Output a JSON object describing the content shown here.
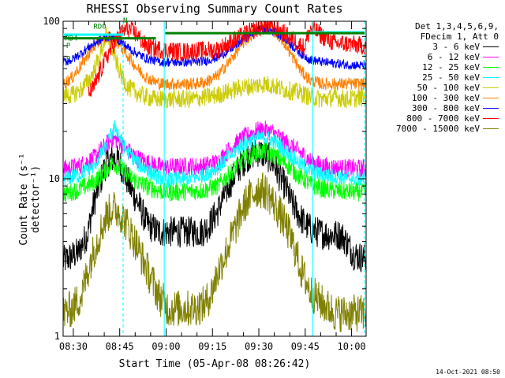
{
  "chart_data": {
    "type": "line",
    "title": "RHESSI Observing Summary Count Rates",
    "xlabel": "Start Time (05-Apr-08 08:26:42)",
    "ylabel": "Count Rate (s⁻¹ detector⁻¹)",
    "yscale": "log",
    "ylim": [
      1,
      100
    ],
    "y_tick_labels": [
      "1",
      "10",
      "100"
    ],
    "x_tick_labels": [
      "08:30",
      "08:45",
      "09:00",
      "09:15",
      "09:30",
      "09:45",
      "10:00"
    ],
    "x_tick_minutes": [
      3.3,
      18.3,
      33.3,
      48.3,
      63.3,
      78.3,
      93.3
    ],
    "xlim_minutes": [
      0,
      98
    ],
    "legend_header": [
      "Det 1,3,4,5,6,9,",
      "FDecim 1, Att 0"
    ],
    "legend_position": "right",
    "annotations": [
      {
        "text": "RD0",
        "x_minute": 9.8,
        "y": 93
      },
      {
        "text": "RD4",
        "x_minute": 0.6,
        "y": 78
      },
      {
        "text": "N",
        "x_minute": 19.4,
        "y": 101
      },
      {
        "text": "P",
        "x_minute": 1.0,
        "y": 70
      },
      {
        "text": "P",
        "x_minute": 1.0,
        "y": 58
      }
    ],
    "series": [
      {
        "name": "3 - 6 keV",
        "color": "#000000",
        "x": [
          0,
          5,
          8,
          12,
          14,
          16,
          18,
          20,
          22,
          25,
          27,
          30,
          31,
          34,
          40,
          45,
          47,
          50,
          53,
          56,
          58,
          60,
          63,
          66,
          68,
          70,
          72,
          74,
          76,
          78,
          80,
          82,
          86,
          90,
          94,
          98
        ],
        "y": [
          3.0,
          3.4,
          4.5,
          9.5,
          12.6,
          13.5,
          13.0,
          10.5,
          8.5,
          6.5,
          5.2,
          4.7,
          4.6,
          4.6,
          4.6,
          4.6,
          5.0,
          6.2,
          8.5,
          11.0,
          12.7,
          14.0,
          14.8,
          14.0,
          12.5,
          10.3,
          8.8,
          7.0,
          6.0,
          5.2,
          4.8,
          4.6,
          4.4,
          4.4,
          3.3,
          3.1
        ]
      },
      {
        "name": "6 - 12 keV",
        "color": "#ff00ff",
        "x": [
          0,
          5,
          10,
          14,
          16,
          18,
          20,
          24,
          28,
          31,
          34,
          40,
          45,
          50,
          54,
          58,
          62,
          65,
          68,
          72,
          76,
          80,
          84,
          90,
          98
        ],
        "y": [
          11.5,
          12.0,
          13.5,
          16.5,
          18.0,
          17.5,
          15.5,
          13.5,
          12.5,
          12.0,
          11.8,
          12.0,
          12.0,
          12.8,
          15.5,
          18.0,
          20.0,
          20.5,
          19.5,
          17.0,
          15.0,
          13.0,
          12.0,
          11.7,
          11.6
        ]
      },
      {
        "name": "12 - 25 keV",
        "color": "#00ff00",
        "x": [
          0,
          5,
          10,
          14,
          16,
          18,
          20,
          24,
          28,
          31,
          34,
          40,
          45,
          50,
          54,
          58,
          62,
          65,
          68,
          72,
          76,
          80,
          84,
          90,
          98
        ],
        "y": [
          8.0,
          8.5,
          9.5,
          11.5,
          12.5,
          12.0,
          11.0,
          9.5,
          8.8,
          8.4,
          8.2,
          8.3,
          8.4,
          9.0,
          10.8,
          13.0,
          14.5,
          15.0,
          14.2,
          12.5,
          10.5,
          9.2,
          8.6,
          8.3,
          8.2
        ]
      },
      {
        "name": "25 - 50 keV",
        "color": "#00ffff",
        "x": [
          0,
          5,
          10,
          14,
          16,
          17,
          18,
          20,
          24,
          28,
          31,
          34,
          40,
          45,
          50,
          54,
          58,
          62,
          65,
          68,
          72,
          76,
          80,
          84,
          90,
          98
        ],
        "y": [
          10.0,
          10.5,
          12.0,
          16.0,
          20.0,
          21.5,
          19.0,
          15.5,
          12.5,
          11.0,
          10.2,
          9.8,
          10.0,
          10.5,
          11.8,
          14.0,
          16.5,
          18.0,
          18.5,
          17.5,
          15.0,
          12.8,
          11.2,
          10.6,
          10.2,
          10.0
        ]
      },
      {
        "name": "50 - 100 keV",
        "color": "#cccc00",
        "x": [
          0,
          3,
          6,
          9,
          12,
          14,
          15.5,
          17,
          19,
          21,
          24,
          27,
          30,
          32,
          34,
          38,
          42,
          46,
          50,
          54,
          58,
          62,
          65,
          68,
          71,
          74,
          77,
          80,
          84,
          88,
          92,
          98
        ],
        "y": [
          34,
          34,
          37,
          44,
          60,
          82,
          70,
          56,
          44,
          38,
          35,
          33,
          32,
          32,
          32,
          32,
          32,
          33,
          34,
          36,
          38,
          39,
          40,
          39,
          37,
          36,
          35,
          33,
          32,
          33,
          32,
          33
        ]
      },
      {
        "name": "100 - 300 keV",
        "color": "#ff8000",
        "x": [
          0,
          3,
          6,
          9,
          12,
          15,
          18,
          21,
          24,
          27,
          30,
          32,
          34,
          38,
          42,
          46,
          50,
          54,
          58,
          62,
          65,
          68,
          71,
          74,
          77,
          80,
          84,
          88,
          92,
          98
        ],
        "y": [
          40,
          44,
          53,
          65,
          75,
          80,
          72,
          60,
          50,
          44,
          41,
          40,
          40,
          40,
          40,
          41,
          45,
          56,
          72,
          86,
          92,
          88,
          76,
          60,
          48,
          42,
          40,
          40,
          40,
          40
        ]
      },
      {
        "name": "300 - 800 keV",
        "color": "#0000ff",
        "x": [
          0,
          3,
          6,
          9,
          12,
          15,
          18,
          21,
          24,
          27,
          30,
          32,
          34,
          38,
          42,
          46,
          50,
          54,
          58,
          62,
          65,
          68,
          71,
          74,
          77,
          80,
          84,
          88,
          92,
          98
        ],
        "y": [
          55,
          57,
          63,
          70,
          76,
          80,
          76,
          68,
          62,
          58,
          56,
          55,
          55,
          55,
          55,
          56,
          59,
          66,
          76,
          86,
          90,
          87,
          80,
          70,
          62,
          57,
          55,
          54,
          53,
          52
        ]
      },
      {
        "name": "800 - 7000 keV",
        "color": "#ff0000",
        "x": [
          8,
          10,
          12,
          15,
          18,
          20,
          21,
          24,
          26,
          28,
          32,
          38,
          44,
          50,
          55,
          60,
          64,
          66,
          68,
          72,
          76,
          78,
          80,
          82,
          84,
          86,
          88,
          92,
          96,
          98
        ],
        "y": [
          34,
          38,
          48,
          64,
          80,
          88,
          90,
          82,
          72,
          68,
          66,
          64,
          65,
          66,
          75,
          85,
          92,
          96,
          92,
          82,
          72,
          68,
          90,
          86,
          80,
          76,
          72,
          72,
          70,
          70
        ]
      },
      {
        "name": "7000 - 15000 keV",
        "color": "#808000",
        "x": [
          0,
          3,
          6,
          8,
          11,
          14,
          16,
          18,
          20,
          22,
          25,
          28,
          31,
          34,
          38,
          42,
          46,
          48,
          50,
          53,
          56,
          58,
          60,
          63,
          66,
          68,
          71,
          74,
          77,
          80,
          84,
          88,
          92,
          98
        ],
        "y": [
          1.4,
          1.5,
          1.8,
          2.6,
          4.0,
          5.8,
          6.5,
          6.2,
          5.4,
          4.5,
          3.3,
          2.4,
          1.8,
          1.5,
          1.5,
          1.5,
          1.6,
          1.9,
          2.5,
          3.5,
          5.0,
          6.4,
          7.5,
          8.6,
          8.2,
          7.0,
          5.5,
          4.0,
          2.6,
          1.9,
          1.6,
          1.4,
          1.4,
          1.4
        ]
      }
    ]
  },
  "footer_date": "14-Oct-2021 08:50"
}
